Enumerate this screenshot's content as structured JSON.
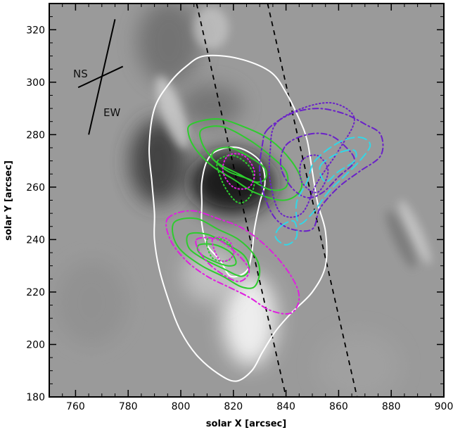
{
  "chart_data": {
    "type": "contour-overlay",
    "xlabel": "solar X [arcsec]",
    "ylabel": "solar Y [arcsec]",
    "xlim": [
      750,
      900
    ],
    "ylim": [
      180,
      330
    ],
    "xticks": [
      760,
      780,
      800,
      820,
      840,
      860,
      880,
      900
    ],
    "yticks": [
      180,
      200,
      220,
      240,
      260,
      280,
      300,
      320
    ],
    "grid": false,
    "background": "grayscale magnetogram-difference image",
    "orientation_labels": [
      "NS",
      "EW"
    ],
    "orientation_axes": [
      {
        "x": [
          775,
          765
        ],
        "y": [
          324,
          280
        ]
      },
      {
        "x": [
          761,
          778
        ],
        "y": [
          298,
          306
        ]
      }
    ],
    "slit_lines": [
      {
        "style": "dashed",
        "color": "#000000",
        "x": [
          806,
          840
        ],
        "y": [
          330,
          180
        ]
      },
      {
        "style": "dashed",
        "color": "#000000",
        "x": [
          833,
          867
        ],
        "y": [
          330,
          180
        ]
      }
    ],
    "contours": [
      {
        "group": "white-outer",
        "color": "#ffffff",
        "style": "solid",
        "points": [
          [
            809,
            310
          ],
          [
            822,
            309
          ],
          [
            834,
            304
          ],
          [
            840,
            296
          ],
          [
            845,
            286
          ],
          [
            848,
            278
          ],
          [
            850,
            266
          ],
          [
            852,
            254
          ],
          [
            855,
            243
          ],
          [
            855,
            230
          ],
          [
            850,
            220
          ],
          [
            842,
            212
          ],
          [
            836,
            205
          ],
          [
            831,
            197
          ],
          [
            827,
            190
          ],
          [
            821,
            186
          ],
          [
            814,
            189
          ],
          [
            806,
            196
          ],
          [
            800,
            205
          ],
          [
            796,
            215
          ],
          [
            792,
            228
          ],
          [
            790,
            240
          ],
          [
            790,
            250
          ],
          [
            789,
            262
          ],
          [
            788,
            275
          ],
          [
            790,
            290
          ],
          [
            796,
            300
          ],
          [
            802,
            306
          ]
        ]
      },
      {
        "group": "white-inner",
        "color": "#ffffff",
        "style": "solid",
        "points": [
          [
            814,
            274
          ],
          [
            822,
            275
          ],
          [
            830,
            270
          ],
          [
            832,
            262
          ],
          [
            830,
            254
          ],
          [
            828,
            244
          ],
          [
            827,
            235
          ],
          [
            825,
            228
          ],
          [
            819,
            226
          ],
          [
            815,
            232
          ],
          [
            810,
            238
          ],
          [
            808,
            246
          ],
          [
            808,
            254
          ],
          [
            808,
            262
          ],
          [
            810,
            270
          ]
        ]
      },
      {
        "group": "green",
        "color": "#2ecc2e",
        "style": "solid",
        "points": [
          [
            804,
            284
          ],
          [
            814,
            286
          ],
          [
            824,
            283
          ],
          [
            834,
            278
          ],
          [
            842,
            270
          ],
          [
            846,
            262
          ],
          [
            844,
            257
          ],
          [
            838,
            255
          ],
          [
            828,
            258
          ],
          [
            820,
            263
          ],
          [
            812,
            268
          ],
          [
            806,
            274
          ],
          [
            803,
            280
          ]
        ]
      },
      {
        "group": "green",
        "color": "#2ecc2e",
        "style": "solid",
        "points": [
          [
            808,
            282
          ],
          [
            816,
            283
          ],
          [
            826,
            278
          ],
          [
            834,
            272
          ],
          [
            840,
            266
          ],
          [
            840,
            260
          ],
          [
            834,
            259
          ],
          [
            826,
            263
          ],
          [
            818,
            266
          ],
          [
            812,
            271
          ],
          [
            808,
            277
          ]
        ]
      },
      {
        "group": "green",
        "color": "#2ecc2e",
        "style": "solid",
        "points": [
          [
            813,
            274
          ],
          [
            819,
            275
          ],
          [
            827,
            271
          ],
          [
            832,
            267
          ],
          [
            832,
            263
          ],
          [
            828,
            262
          ],
          [
            822,
            265
          ],
          [
            816,
            268
          ],
          [
            812,
            271
          ]
        ]
      },
      {
        "group": "green",
        "color": "#2ecc2e",
        "style": "solid",
        "points": [
          [
            798,
            247
          ],
          [
            806,
            248
          ],
          [
            814,
            244
          ],
          [
            822,
            240
          ],
          [
            828,
            234
          ],
          [
            830,
            228
          ],
          [
            828,
            222
          ],
          [
            823,
            222
          ],
          [
            816,
            226
          ],
          [
            808,
            230
          ],
          [
            800,
            236
          ],
          [
            797,
            242
          ]
        ]
      },
      {
        "group": "green",
        "color": "#2ecc2e",
        "style": "solid",
        "points": [
          [
            803,
            242
          ],
          [
            810,
            242
          ],
          [
            818,
            238
          ],
          [
            824,
            234
          ],
          [
            826,
            229
          ],
          [
            823,
            226
          ],
          [
            816,
            229
          ],
          [
            808,
            233
          ],
          [
            803,
            237
          ]
        ]
      },
      {
        "group": "green",
        "color": "#2ecc2e",
        "style": "solid",
        "points": [
          [
            807,
            238
          ],
          [
            813,
            238
          ],
          [
            819,
            235
          ],
          [
            821,
            231
          ],
          [
            818,
            230
          ],
          [
            812,
            232
          ],
          [
            807,
            235
          ]
        ]
      },
      {
        "group": "green-dotted",
        "color": "#2ecc2e",
        "style": "dotted",
        "points": [
          [
            814,
            270
          ],
          [
            820,
            272
          ],
          [
            826,
            268
          ],
          [
            828,
            262
          ],
          [
            826,
            256
          ],
          [
            822,
            254
          ],
          [
            818,
            258
          ],
          [
            815,
            264
          ]
        ]
      },
      {
        "group": "green-dotted",
        "color": "#2ecc2e",
        "style": "dotted",
        "points": [
          [
            810,
            240
          ],
          [
            816,
            240
          ],
          [
            820,
            236
          ],
          [
            818,
            232
          ],
          [
            812,
            233
          ]
        ]
      },
      {
        "group": "magenta",
        "color": "#e01ee0",
        "style": "dash-dot",
        "points": [
          [
            795,
            248
          ],
          [
            804,
            251
          ],
          [
            814,
            248
          ],
          [
            824,
            244
          ],
          [
            834,
            236
          ],
          [
            842,
            226
          ],
          [
            845,
            218
          ],
          [
            842,
            212
          ],
          [
            834,
            213
          ],
          [
            826,
            218
          ],
          [
            818,
            222
          ],
          [
            810,
            226
          ],
          [
            802,
            232
          ],
          [
            796,
            240
          ]
        ]
      },
      {
        "group": "magenta",
        "color": "#e01ee0",
        "style": "dash-dot",
        "points": [
          [
            806,
            240
          ],
          [
            814,
            240
          ],
          [
            822,
            234
          ],
          [
            826,
            228
          ],
          [
            822,
            224
          ],
          [
            814,
            228
          ],
          [
            808,
            234
          ]
        ]
      },
      {
        "group": "magenta-dotted",
        "color": "#e01ee0",
        "style": "dotted",
        "points": [
          [
            818,
            272
          ],
          [
            824,
            272
          ],
          [
            828,
            266
          ],
          [
            826,
            260
          ],
          [
            820,
            260
          ],
          [
            816,
            266
          ]
        ]
      },
      {
        "group": "magenta-dotted",
        "color": "#e01ee0",
        "style": "dotted",
        "points": [
          [
            812,
            240
          ],
          [
            818,
            240
          ],
          [
            820,
            234
          ],
          [
            815,
            232
          ]
        ]
      },
      {
        "group": "purple",
        "color": "#6a22c8",
        "style": "dash-dot",
        "points": [
          [
            833,
            282
          ],
          [
            842,
            288
          ],
          [
            852,
            290
          ],
          [
            862,
            288
          ],
          [
            870,
            284
          ],
          [
            876,
            280
          ],
          [
            876,
            272
          ],
          [
            868,
            266
          ],
          [
            860,
            260
          ],
          [
            853,
            252
          ],
          [
            850,
            244
          ],
          [
            842,
            244
          ],
          [
            836,
            248
          ],
          [
            832,
            256
          ],
          [
            830,
            266
          ],
          [
            831,
            276
          ]
        ]
      },
      {
        "group": "purple",
        "color": "#6a22c8",
        "style": "dash-dot",
        "points": [
          [
            840,
            276
          ],
          [
            848,
            280
          ],
          [
            856,
            280
          ],
          [
            862,
            276
          ],
          [
            866,
            270
          ],
          [
            860,
            264
          ],
          [
            854,
            258
          ],
          [
            848,
            256
          ],
          [
            842,
            260
          ],
          [
            838,
            268
          ]
        ]
      },
      {
        "group": "purple-dotted",
        "color": "#6a22c8",
        "style": "dotted",
        "points": [
          [
            836,
            284
          ],
          [
            846,
            290
          ],
          [
            858,
            292
          ],
          [
            866,
            286
          ],
          [
            860,
            274
          ],
          [
            852,
            262
          ],
          [
            846,
            250
          ],
          [
            838,
            250
          ],
          [
            834,
            262
          ],
          [
            834,
            274
          ]
        ]
      },
      {
        "group": "purple-dotted",
        "color": "#6a22c8",
        "style": "dotted",
        "points": [
          [
            846,
            270
          ],
          [
            852,
            272
          ],
          [
            856,
            266
          ],
          [
            852,
            258
          ],
          [
            846,
            262
          ]
        ]
      },
      {
        "group": "cyan",
        "color": "#33d6e6",
        "style": "long-dash",
        "points": [
          [
            851,
            270
          ],
          [
            860,
            277
          ],
          [
            868,
            279
          ],
          [
            872,
            276
          ],
          [
            868,
            270
          ],
          [
            862,
            264
          ],
          [
            856,
            258
          ],
          [
            850,
            250
          ],
          [
            845,
            246
          ],
          [
            844,
            254
          ],
          [
            848,
            262
          ]
        ]
      },
      {
        "group": "cyan",
        "color": "#33d6e6",
        "style": "long-dash",
        "points": [
          [
            853,
            268
          ],
          [
            860,
            273
          ],
          [
            866,
            274
          ],
          [
            866,
            270
          ],
          [
            860,
            266
          ],
          [
            855,
            262
          ]
        ]
      },
      {
        "group": "cyan",
        "color": "#33d6e6",
        "style": "long-dash",
        "points": [
          [
            838,
            245
          ],
          [
            843,
            247
          ],
          [
            844,
            241
          ],
          [
            840,
            238
          ],
          [
            836,
            241
          ]
        ]
      }
    ]
  }
}
